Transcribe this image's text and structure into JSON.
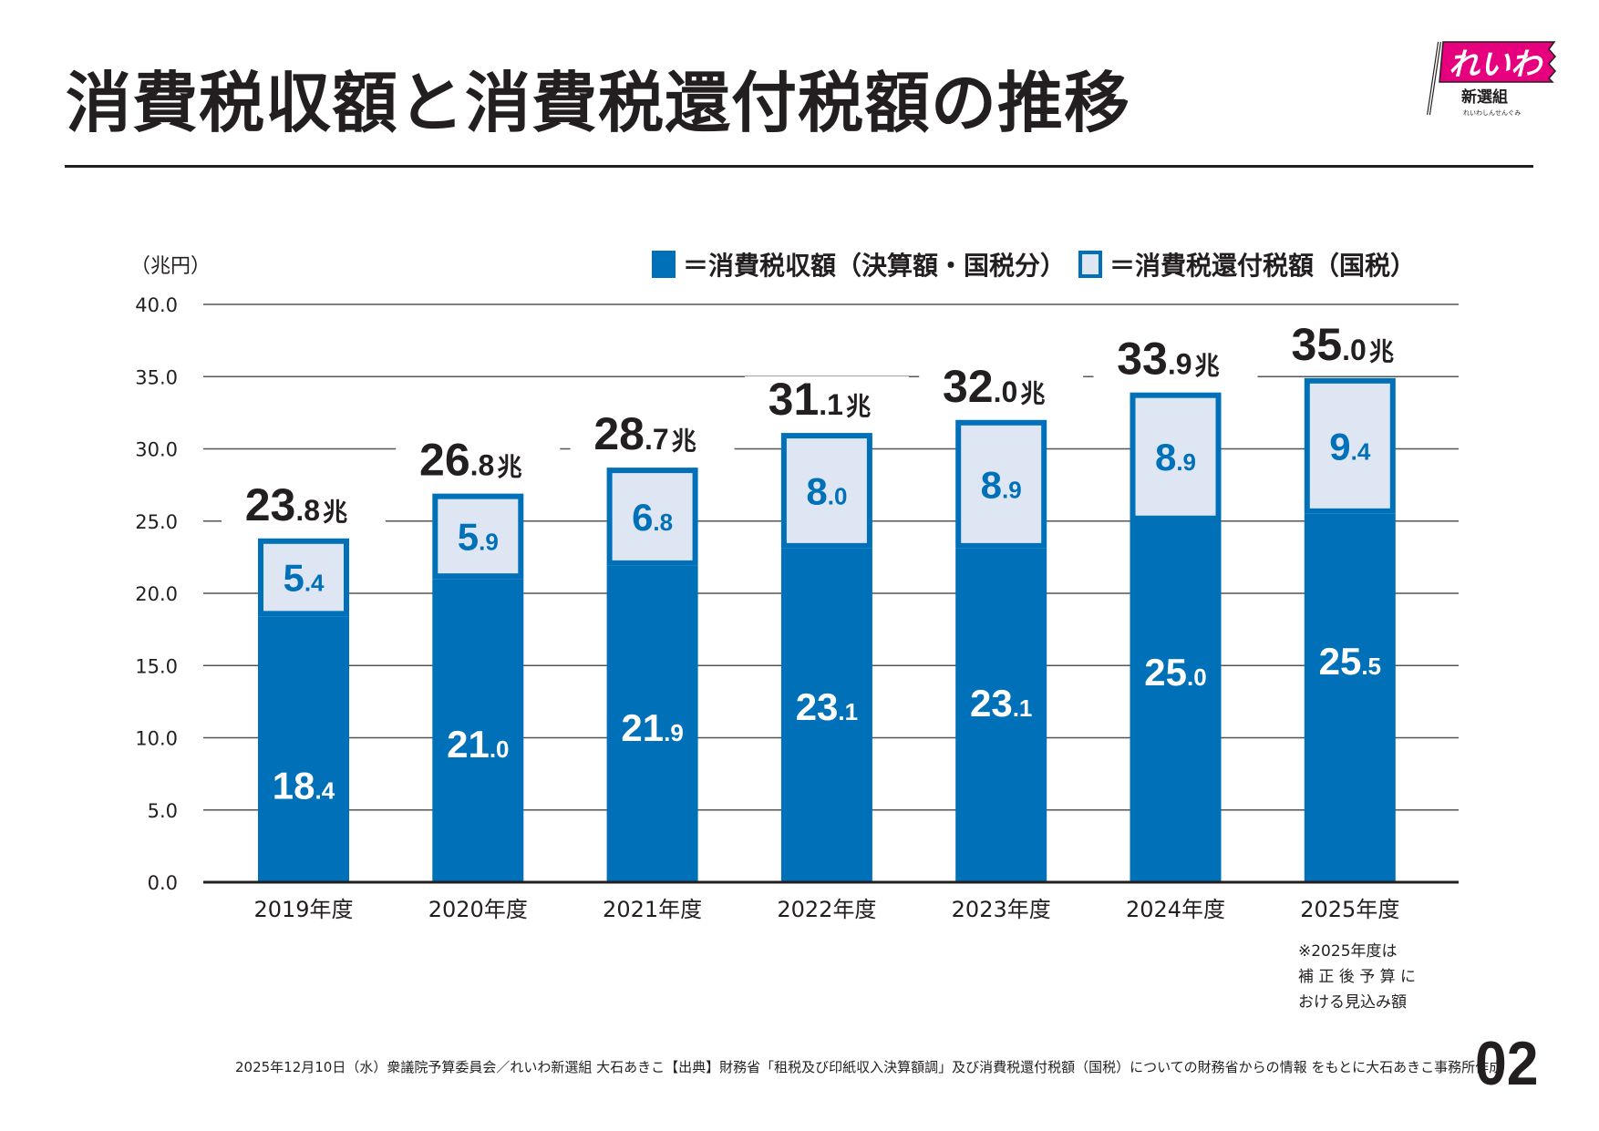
{
  "header": {
    "title": "消費税収額と消費税還付税額の推移",
    "logo": {
      "main_text": "れいわ",
      "sub_text": "新選組",
      "tagline": "れいわしんせんぐみ",
      "flag_color": "#e6007e"
    }
  },
  "legend": {
    "items": [
      {
        "swatch": "dark",
        "label": "＝消費税収額（決算額・国税分）"
      },
      {
        "swatch": "light",
        "label": "＝消費税還付税額（国税）"
      }
    ]
  },
  "colors": {
    "revenue": "#0070b8",
    "refund_fill": "#dfe6f3",
    "refund_border": "#0070b8",
    "text": "#231f20",
    "grid": "#555555"
  },
  "chart_data": {
    "type": "bar",
    "stacked": true,
    "title": "消費税収額と消費税還付税額の推移",
    "xlabel": "",
    "ylabel": "（兆円）",
    "ylim": [
      0,
      40
    ],
    "yticks": [
      "0.0",
      "5.0",
      "10.0",
      "15.0",
      "20.0",
      "25.0",
      "30.0",
      "35.0",
      "40.0"
    ],
    "ytick_values": [
      0,
      5,
      10,
      15,
      20,
      25,
      30,
      35,
      40
    ],
    "grid": true,
    "legend_position": "top-right",
    "categories": [
      "2019年度",
      "2020年度",
      "2021年度",
      "2022年度",
      "2023年度",
      "2024年度",
      "2025年度"
    ],
    "series": [
      {
        "name": "消費税収額（決算額・国税分）",
        "values": [
          18.4,
          21.0,
          21.9,
          23.1,
          23.1,
          25.0,
          25.5
        ]
      },
      {
        "name": "消費税還付税額（国税）",
        "values": [
          5.4,
          5.9,
          6.8,
          8.0,
          8.9,
          8.9,
          9.4
        ]
      }
    ],
    "totals": [
      23.8,
      26.8,
      28.7,
      31.1,
      32.0,
      33.9,
      35.0
    ],
    "total_unit": "兆"
  },
  "annotations": {
    "unit_label": "（兆円）",
    "note": "※2025年度は\n補 正 後 予 算 に\nおける見込み額"
  },
  "footer": {
    "source": "2025年12月10日（水）衆議院予算委員会／れいわ新選組 大石あきこ【出典】財務省「租税及び印紙収入決算額調」及び消費税還付税額（国税）についての財務省からの情報 をもとに大石あきこ事務所作成",
    "page_number": "02"
  }
}
